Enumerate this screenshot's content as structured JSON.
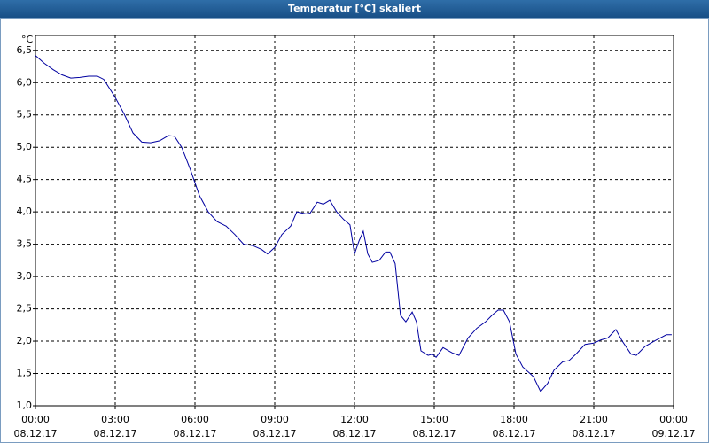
{
  "chart_data": {
    "type": "line",
    "title": "Temperatur [°C] skaliert",
    "y_unit": "°C",
    "x": [
      0,
      0.33,
      0.67,
      1,
      1.33,
      1.67,
      2,
      2.33,
      2.57,
      3,
      3.33,
      3.67,
      4,
      4.33,
      4.67,
      5,
      5.23,
      5.5,
      5.83,
      6.17,
      6.5,
      6.83,
      7.17,
      7.5,
      7.83,
      8.17,
      8.5,
      8.73,
      9,
      9.27,
      9.6,
      9.83,
      10.17,
      10.33,
      10.6,
      10.83,
      11.07,
      11.33,
      11.6,
      11.83,
      12,
      12.17,
      12.33,
      12.5,
      12.67,
      12.93,
      13.17,
      13.33,
      13.53,
      13.73,
      13.93,
      14.17,
      14.33,
      14.5,
      14.77,
      14.93,
      15.07,
      15.33,
      15.67,
      15.93,
      16.27,
      16.6,
      16.93,
      17.17,
      17.4,
      17.6,
      17.83,
      18.07,
      18.33,
      18.6,
      18.73,
      19,
      19.27,
      19.5,
      19.83,
      20.07,
      20.33,
      20.67,
      21,
      21.27,
      21.53,
      21.83,
      22.07,
      22.4,
      22.6,
      22.93,
      23.27,
      23.5,
      23.73,
      23.93
    ],
    "series": [
      {
        "name": "Temperatur",
        "color": "#0000a0",
        "values": [
          6.42,
          6.3,
          6.2,
          6.12,
          6.07,
          6.08,
          6.1,
          6.1,
          6.05,
          5.77,
          5.52,
          5.22,
          5.08,
          5.07,
          5.1,
          5.18,
          5.17,
          5.0,
          4.65,
          4.25,
          4.0,
          3.85,
          3.78,
          3.65,
          3.5,
          3.48,
          3.42,
          3.35,
          3.45,
          3.65,
          3.78,
          4.0,
          3.97,
          3.98,
          4.15,
          4.12,
          4.18,
          4.0,
          3.88,
          3.8,
          3.35,
          3.55,
          3.7,
          3.35,
          3.22,
          3.25,
          3.38,
          3.38,
          3.2,
          2.4,
          2.3,
          2.45,
          2.3,
          1.85,
          1.78,
          1.8,
          1.75,
          1.9,
          1.82,
          1.78,
          2.05,
          2.2,
          2.3,
          2.4,
          2.48,
          2.48,
          2.3,
          1.8,
          1.6,
          1.5,
          1.45,
          1.22,
          1.35,
          1.55,
          1.68,
          1.7,
          1.8,
          1.95,
          1.97,
          2.02,
          2.05,
          2.18,
          2.0,
          1.8,
          1.78,
          1.92,
          2.0,
          2.05,
          2.1,
          2.1
        ]
      }
    ],
    "xlim": [
      0,
      24
    ],
    "xticks": [
      {
        "value": 0,
        "label": "00:00"
      },
      {
        "value": 3,
        "label": "03:00"
      },
      {
        "value": 6,
        "label": "06:00"
      },
      {
        "value": 9,
        "label": "09:00"
      },
      {
        "value": 12,
        "label": "12:00"
      },
      {
        "value": 15,
        "label": "15:00"
      },
      {
        "value": 18,
        "label": "18:00"
      },
      {
        "value": 21,
        "label": "21:00"
      },
      {
        "value": 24,
        "label": "00:00"
      }
    ],
    "xtick_dates": [
      "08.12.17",
      "08.12.17",
      "08.12.17",
      "08.12.17",
      "08.12.17",
      "08.12.17",
      "08.12.17",
      "08.12.17",
      "09.12.17"
    ],
    "ylim": [
      1,
      6.73
    ],
    "yticks": [
      {
        "value": 1,
        "label": "1,0"
      },
      {
        "value": 1.5,
        "label": "1,5"
      },
      {
        "value": 2,
        "label": "2,0"
      },
      {
        "value": 2.5,
        "label": "2,5"
      },
      {
        "value": 3,
        "label": "3,0"
      },
      {
        "value": 3.5,
        "label": "3,5"
      },
      {
        "value": 4,
        "label": "4,0"
      },
      {
        "value": 4.5,
        "label": "4,5"
      },
      {
        "value": 5,
        "label": "5,0"
      },
      {
        "value": 5.5,
        "label": "5,5"
      },
      {
        "value": 6,
        "label": "6,0"
      },
      {
        "value": 6.5,
        "label": "6,5"
      }
    ],
    "grid": true
  }
}
